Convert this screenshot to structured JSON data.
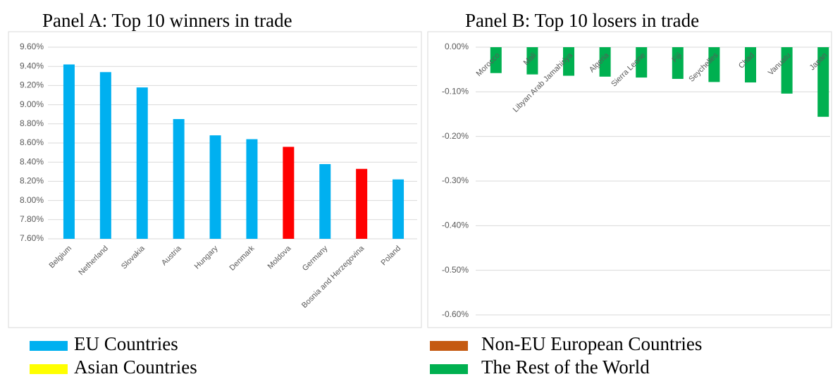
{
  "chart_data": [
    {
      "type": "bar",
      "title": "Panel A: Top 10 winners in trade",
      "categories": [
        "Belgium",
        "Netherland",
        "Slovakia",
        "Austria",
        "Hungary",
        "Denmark",
        "Moldova",
        "Germany",
        "Bosnia and Herzegovina",
        "Poland"
      ],
      "values": [
        9.42,
        9.34,
        9.18,
        8.85,
        8.68,
        8.64,
        8.56,
        8.38,
        8.33,
        8.22
      ],
      "colors": [
        "#00b0f0",
        "#00b0f0",
        "#00b0f0",
        "#00b0f0",
        "#00b0f0",
        "#00b0f0",
        "#ff0000",
        "#00b0f0",
        "#ff0000",
        "#00b0f0"
      ],
      "ylim": [
        7.6,
        9.6
      ],
      "yticks": [
        {
          "value": 7.6,
          "label": "7.60%"
        },
        {
          "value": 7.8,
          "label": "7.80%"
        },
        {
          "value": 8.0,
          "label": "8.00%"
        },
        {
          "value": 8.2,
          "label": "8.20%"
        },
        {
          "value": 8.4,
          "label": "8.40%"
        },
        {
          "value": 8.6,
          "label": "8.60%"
        },
        {
          "value": 8.8,
          "label": "8.80%"
        },
        {
          "value": 9.0,
          "label": "9.00%"
        },
        {
          "value": 9.2,
          "label": "9.20%"
        },
        {
          "value": 9.4,
          "label": "9.40%"
        },
        {
          "value": 9.6,
          "label": "9.60%"
        }
      ],
      "grid": true
    },
    {
      "type": "bar",
      "title": "Panel B: Top 10 losers in trade",
      "categories": [
        "Morocco",
        "Mali",
        "Libyan Arab Jamahiriya",
        "Algeria",
        "Sierra Leone",
        "Fiji",
        "Seychelles",
        "Chad",
        "Vanuatu",
        "Japan"
      ],
      "values": [
        -0.058,
        -0.061,
        -0.064,
        -0.066,
        -0.068,
        -0.071,
        -0.078,
        -0.079,
        -0.104,
        -0.156
      ],
      "colors": [
        "#00b050",
        "#00b050",
        "#00b050",
        "#00b050",
        "#00b050",
        "#00b050",
        "#00b050",
        "#00b050",
        "#00b050",
        "#00b050"
      ],
      "ylim": [
        -0.6,
        0
      ],
      "yticks": [
        {
          "value": -0.6,
          "label": "-0.60%"
        },
        {
          "value": -0.5,
          "label": "-0.50%"
        },
        {
          "value": -0.4,
          "label": "-0.40%"
        },
        {
          "value": -0.3,
          "label": "-0.30%"
        },
        {
          "value": -0.2,
          "label": "-0.20%"
        },
        {
          "value": -0.1,
          "label": "-0.10%"
        },
        {
          "value": 0,
          "label": "0.00%"
        }
      ],
      "grid": true
    }
  ],
  "legend": [
    {
      "name": "EU Countries",
      "color": "#00b0f0"
    },
    {
      "name": "Asian Countries",
      "color": "#ffff00"
    },
    {
      "name": "Non-EU European Countries",
      "color": "#c55a11"
    },
    {
      "name": "The Rest of the World",
      "color": "#00b050"
    }
  ]
}
